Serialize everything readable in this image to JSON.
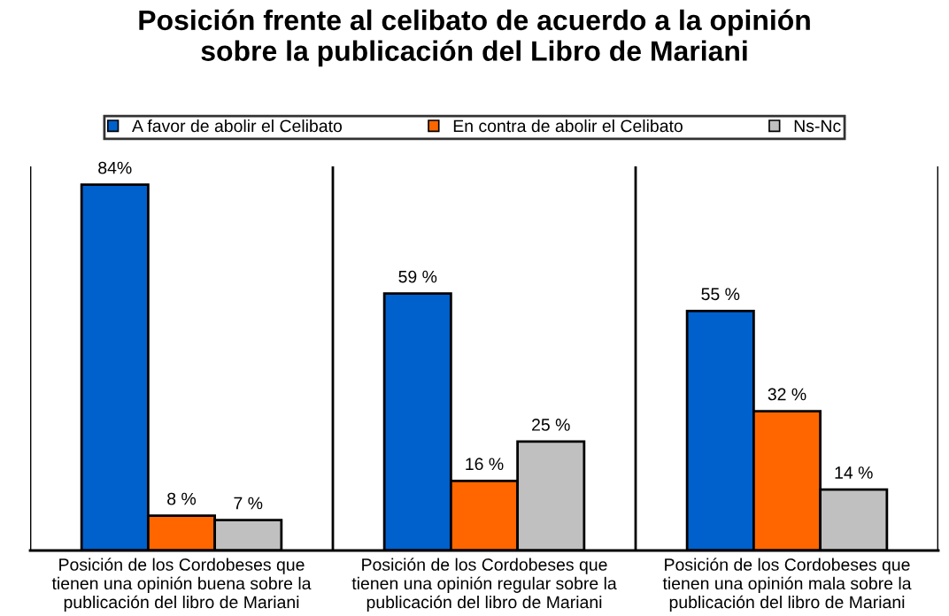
{
  "chart_data": {
    "type": "bar",
    "title": "Posición frente al celibato de acuerdo a la opinión\nsobre la publicación del Libro de Mariani",
    "categories": [
      "Posición de los Cordobeses que\ntienen una opinión buena sobre la\npublicación del libro de Mariani",
      "Posición de los Cordobeses que\ntienen una opinión regular sobre la\npublicación del libro de Mariani",
      "Posición de los Cordobeses que\ntienen una opinión mala sobre la\npublicación del libro de Mariani"
    ],
    "series": [
      {
        "name": "A favor de abolir el Celibato",
        "color": "#0060cc",
        "values": [
          84,
          59,
          55
        ],
        "value_labels": [
          "84%",
          "59 %",
          "55 %"
        ]
      },
      {
        "name": "En contra de abolir el Celibato",
        "color": "#ff6600",
        "values": [
          8,
          16,
          32
        ],
        "value_labels": [
          "8 %",
          "16 %",
          "32 %"
        ]
      },
      {
        "name": "Ns-Nc",
        "color": "#c0c0c0",
        "values": [
          7,
          25,
          14
        ],
        "value_labels": [
          "7 %",
          "25 %",
          "14 %"
        ]
      }
    ],
    "grid": "x",
    "legend": "top"
  }
}
